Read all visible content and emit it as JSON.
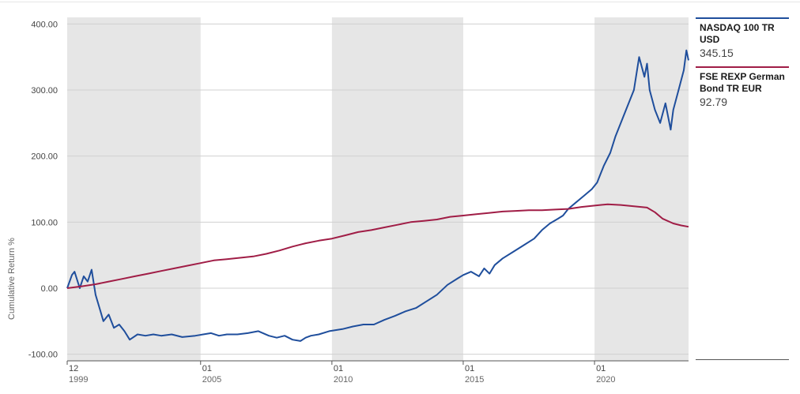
{
  "chart_data": {
    "type": "line",
    "title": "",
    "xlabel": "",
    "ylabel": "Cumulative Return %",
    "ylim": [
      -110,
      410
    ],
    "yticks": [
      -100,
      0,
      100,
      200,
      300,
      400
    ],
    "ytick_labels": [
      "-100.00",
      "0.00",
      "100.00",
      "200.00",
      "300.00",
      "400.00"
    ],
    "xlim": [
      1999.92,
      2023.58
    ],
    "xticks": [
      {
        "x": 1999.92,
        "month": "12",
        "year": "1999"
      },
      {
        "x": 2005.0,
        "month": "01",
        "year": "2005"
      },
      {
        "x": 2010.0,
        "month": "01",
        "year": "2010"
      },
      {
        "x": 2015.0,
        "month": "01",
        "year": "2015"
      },
      {
        "x": 2020.0,
        "month": "01",
        "year": "2020"
      }
    ],
    "shaded_bands": [
      [
        1999.92,
        2005.0
      ],
      [
        2010.0,
        2015.0
      ],
      [
        2020.0,
        2023.58
      ]
    ],
    "grid": true,
    "legend_position": "right",
    "series": [
      {
        "name": "NASDAQ 100 TR USD",
        "last_value": "345.15",
        "color": "#1f4e9c",
        "x": [
          1999.92,
          2000.1,
          2000.2,
          2000.4,
          2000.55,
          2000.7,
          2000.85,
          2001.0,
          2001.15,
          2001.3,
          2001.5,
          2001.7,
          2001.9,
          2002.1,
          2002.3,
          2002.6,
          2002.9,
          2003.2,
          2003.5,
          2003.9,
          2004.3,
          2004.8,
          2005.1,
          2005.4,
          2005.7,
          2006.0,
          2006.4,
          2006.8,
          2007.2,
          2007.6,
          2007.9,
          2008.2,
          2008.5,
          2008.8,
          2009.0,
          2009.2,
          2009.5,
          2009.9,
          2010.4,
          2010.8,
          2011.2,
          2011.6,
          2012.0,
          2012.4,
          2012.8,
          2013.2,
          2013.6,
          2014.0,
          2014.4,
          2014.8,
          2015.0,
          2015.3,
          2015.6,
          2015.8,
          2016.0,
          2016.2,
          2016.5,
          2016.9,
          2017.3,
          2017.7,
          2018.0,
          2018.3,
          2018.6,
          2018.8,
          2019.0,
          2019.3,
          2019.6,
          2019.9,
          2020.1,
          2020.2,
          2020.35,
          2020.6,
          2020.8,
          2021.0,
          2021.2,
          2021.5,
          2021.7,
          2021.9,
          2022.0,
          2022.1,
          2022.3,
          2022.5,
          2022.7,
          2022.9,
          2023.0,
          2023.2,
          2023.4,
          2023.5,
          2023.58
        ],
        "y": [
          0,
          20,
          25,
          0,
          18,
          10,
          28,
          -10,
          -30,
          -50,
          -40,
          -60,
          -55,
          -65,
          -78,
          -70,
          -72,
          -70,
          -72,
          -70,
          -74,
          -72,
          -70,
          -68,
          -72,
          -70,
          -70,
          -68,
          -65,
          -72,
          -75,
          -72,
          -78,
          -80,
          -75,
          -72,
          -70,
          -65,
          -62,
          -58,
          -55,
          -55,
          -48,
          -42,
          -35,
          -30,
          -20,
          -10,
          5,
          15,
          20,
          25,
          18,
          30,
          22,
          35,
          45,
          55,
          65,
          75,
          88,
          98,
          105,
          110,
          120,
          130,
          140,
          150,
          160,
          170,
          185,
          205,
          230,
          250,
          270,
          300,
          350,
          320,
          340,
          300,
          270,
          250,
          280,
          240,
          270,
          300,
          330,
          360,
          345
        ]
      },
      {
        "name": "FSE REXP German Bond TR EUR",
        "last_value": "92.79",
        "color": "#a01d46",
        "x": [
          1999.92,
          2000.5,
          2001.0,
          2001.5,
          2002.0,
          2002.5,
          2003.0,
          2003.5,
          2004.0,
          2004.5,
          2005.0,
          2005.5,
          2006.0,
          2006.5,
          2007.0,
          2007.5,
          2008.0,
          2008.5,
          2009.0,
          2009.5,
          2010.0,
          2010.5,
          2011.0,
          2011.5,
          2012.0,
          2012.5,
          2013.0,
          2013.5,
          2014.0,
          2014.5,
          2015.0,
          2015.5,
          2016.0,
          2016.5,
          2017.0,
          2017.5,
          2018.0,
          2018.5,
          2019.0,
          2019.5,
          2020.0,
          2020.5,
          2021.0,
          2021.5,
          2022.0,
          2022.3,
          2022.6,
          2023.0,
          2023.3,
          2023.58
        ],
        "y": [
          0,
          3,
          6,
          10,
          14,
          18,
          22,
          26,
          30,
          34,
          38,
          42,
          44,
          46,
          48,
          52,
          57,
          63,
          68,
          72,
          75,
          80,
          85,
          88,
          92,
          96,
          100,
          102,
          104,
          108,
          110,
          112,
          114,
          116,
          117,
          118,
          118,
          119,
          120,
          123,
          125,
          127,
          126,
          124,
          122,
          115,
          105,
          98,
          95,
          93
        ]
      }
    ]
  }
}
